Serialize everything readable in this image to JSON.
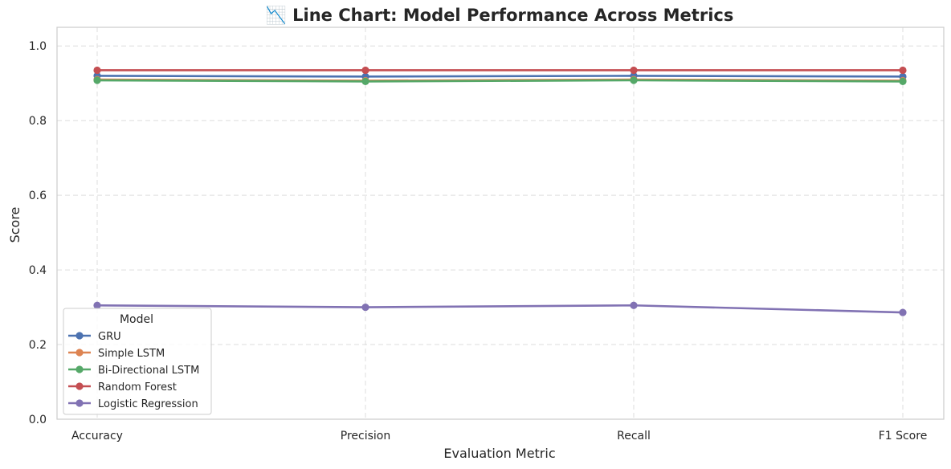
{
  "chart_data": {
    "type": "line",
    "title": "📉 Line Chart: Model Performance Across Metrics",
    "xlabel": "Evaluation Metric",
    "ylabel": "Score",
    "categories": [
      "Accuracy",
      "Precision",
      "Recall",
      "F1 Score"
    ],
    "ylim": [
      0,
      1.05
    ],
    "yticks": [
      "0.0",
      "0.2",
      "0.4",
      "0.6",
      "0.8",
      "1.0"
    ],
    "ytick_values": [
      0,
      0.2,
      0.4,
      0.6,
      0.8,
      1.0
    ],
    "grid": true,
    "legend_title": "Model",
    "legend_position": "lower-left",
    "series": [
      {
        "name": "GRU",
        "color": "#4c72b0",
        "values": [
          0.92,
          0.918,
          0.92,
          0.918
        ]
      },
      {
        "name": "Simple LSTM",
        "color": "#dd8452",
        "values": [
          0.91,
          0.907,
          0.91,
          0.907
        ]
      },
      {
        "name": "Bi-Directional LSTM",
        "color": "#55a868",
        "values": [
          0.908,
          0.905,
          0.908,
          0.905
        ]
      },
      {
        "name": "Random Forest",
        "color": "#c44e52",
        "values": [
          0.935,
          0.935,
          0.935,
          0.935
        ]
      },
      {
        "name": "Logistic Regression",
        "color": "#8172b3",
        "values": [
          0.305,
          0.3,
          0.305,
          0.286
        ]
      }
    ]
  }
}
